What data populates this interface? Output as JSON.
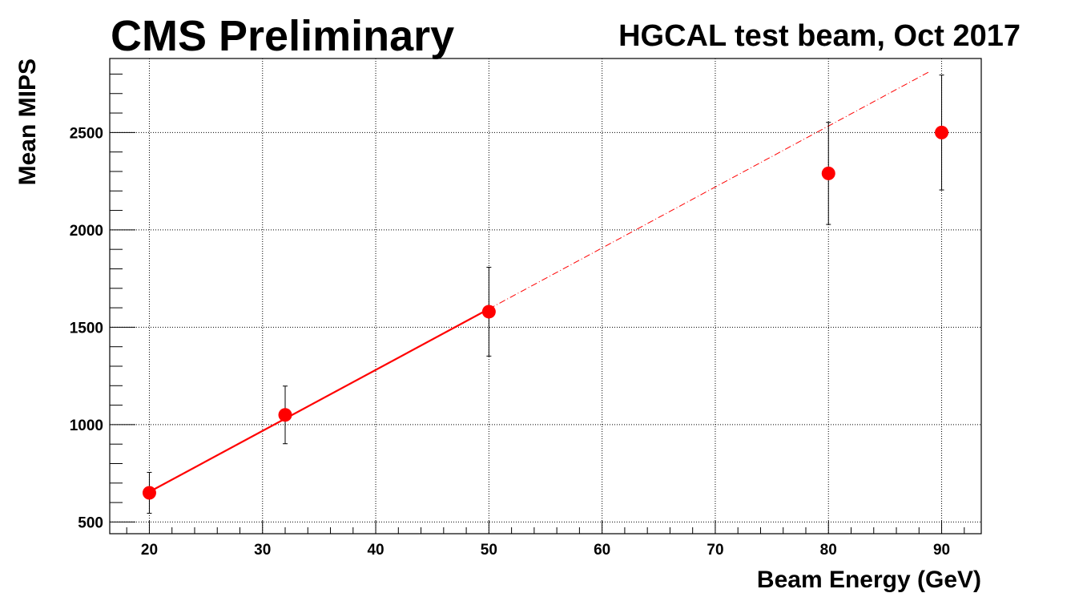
{
  "header": {
    "title": "CMS Preliminary",
    "subtitle": "HGCAL test beam, Oct 2017"
  },
  "chart_data": {
    "type": "scatter",
    "title": "CMS Preliminary",
    "subtitle": "HGCAL test beam, Oct 2017",
    "xlabel": "Beam Energy (GeV)",
    "ylabel": "Mean MIPS",
    "xlim": [
      16.5,
      93.5
    ],
    "ylim": [
      440,
      2880
    ],
    "grid": true,
    "x_ticks": [
      20,
      30,
      40,
      50,
      60,
      70,
      80,
      90
    ],
    "y_ticks": [
      500,
      1000,
      1500,
      2000,
      2500
    ],
    "marker_color": "#ff0000",
    "series": [
      {
        "x": [
          20,
          32,
          50,
          80,
          90
        ],
        "y": [
          650,
          1050,
          1580,
          2290,
          2500
        ],
        "y_err": [
          105,
          148,
          228,
          262,
          295
        ]
      }
    ],
    "fit": {
      "type": "linear",
      "color": "#ff0000",
      "x_solid": [
        20,
        50
      ],
      "x_dashed": [
        50,
        89
      ],
      "points": [
        [
          20,
          655
        ],
        [
          50,
          1590
        ],
        [
          89,
          2815
        ]
      ]
    }
  }
}
